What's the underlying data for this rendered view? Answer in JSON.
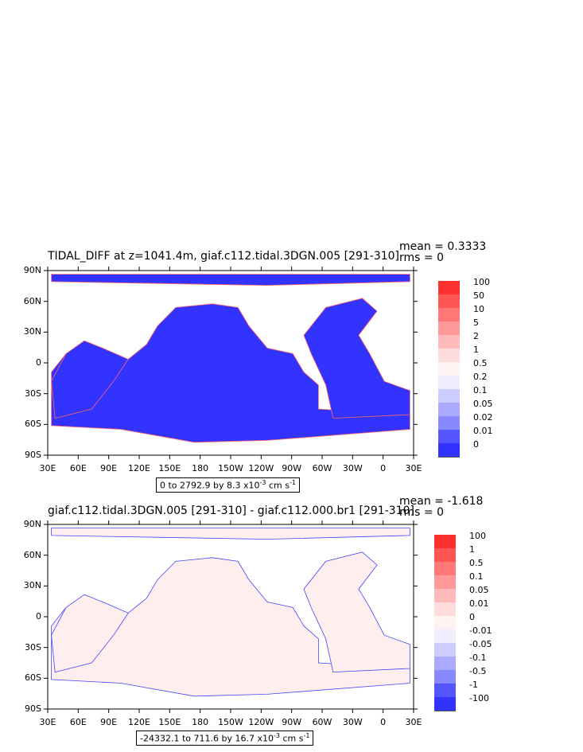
{
  "panels": [
    {
      "title": "TIDAL_DIFF at z=1041.4m, giaf.c112.tidal.3DGN.005 [291-310]",
      "mean": "mean = 0.3333",
      "rms": "rms = 0",
      "range_prefix": "0 to 2792.9 by 8.3 x10",
      "range_exp": "-3",
      "range_units": " cm s",
      "range_units_exp": "-1",
      "ocean_color": "#3333ff",
      "legend": [
        {
          "label": "100",
          "color": "#ff3030"
        },
        {
          "label": "50",
          "color": "#ff5555"
        },
        {
          "label": "10",
          "color": "#ff7777"
        },
        {
          "label": "5",
          "color": "#ff9999"
        },
        {
          "label": "2",
          "color": "#ffbbbb"
        },
        {
          "label": "1",
          "color": "#ffdddd"
        },
        {
          "label": "0.5",
          "color": "#fff2f2"
        },
        {
          "label": "0.2",
          "color": "#eeeeff"
        },
        {
          "label": "0.1",
          "color": "#ccccff"
        },
        {
          "label": "0.05",
          "color": "#aaaaff"
        },
        {
          "label": "0.02",
          "color": "#8888ff"
        },
        {
          "label": "0.01",
          "color": "#5555ff"
        },
        {
          "label": "0",
          "color": "#3333ff"
        }
      ]
    },
    {
      "title": "giaf.c112.tidal.3DGN.005 [291-310] - giaf.c112.000.br1 [291-310]",
      "mean": "mean = -1.618",
      "rms": "rms = 0",
      "range_prefix": "-24332.1 to 711.6 by 16.7 x10",
      "range_exp": "-3",
      "range_units": " cm s",
      "range_units_exp": "-1",
      "ocean_color": "#ffeeee",
      "legend": [
        {
          "label": "100",
          "color": "#ff3030"
        },
        {
          "label": "1",
          "color": "#ff5555"
        },
        {
          "label": "0.5",
          "color": "#ff7777"
        },
        {
          "label": "0.1",
          "color": "#ff9999"
        },
        {
          "label": "0.05",
          "color": "#ffbbbb"
        },
        {
          "label": "0.01",
          "color": "#ffdddd"
        },
        {
          "label": "0",
          "color": "#fff2f2"
        },
        {
          "label": "-0.01",
          "color": "#eeeeff"
        },
        {
          "label": "-0.05",
          "color": "#ccccff"
        },
        {
          "label": "-0.1",
          "color": "#aaaaff"
        },
        {
          "label": "-0.5",
          "color": "#8888ff"
        },
        {
          "label": "-1",
          "color": "#5555ff"
        },
        {
          "label": "-100",
          "color": "#3333ff"
        }
      ]
    }
  ],
  "axes": {
    "lat_labels": [
      "90N",
      "60N",
      "30N",
      "0",
      "30S",
      "60S",
      "90S"
    ],
    "lon_labels": [
      "30E",
      "60E",
      "90E",
      "120E",
      "150E",
      "180",
      "150W",
      "120W",
      "90W",
      "60W",
      "30W",
      "0",
      "30E"
    ]
  }
}
